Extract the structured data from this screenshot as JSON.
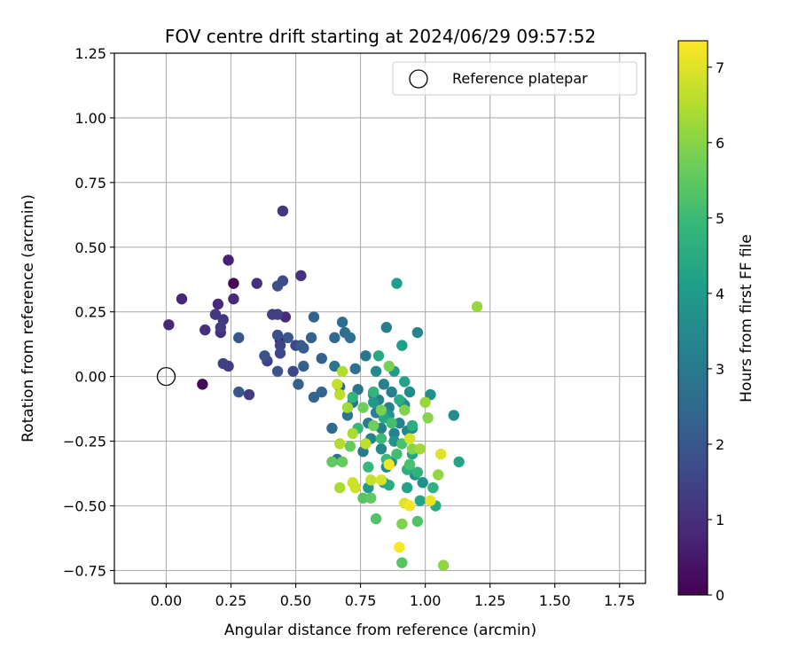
{
  "chart_data": {
    "type": "scatter",
    "title": "FOV centre drift starting at 2024/06/29 09:57:52",
    "xlabel": "Angular distance from reference (arcmin)",
    "ylabel": "Rotation from reference (arcmin)",
    "xlim": [
      -0.2,
      1.85
    ],
    "ylim": [
      -0.8,
      1.25
    ],
    "xticks": [
      "0.00",
      "0.25",
      "0.50",
      "0.75",
      "1.00",
      "1.25",
      "1.50",
      "1.75"
    ],
    "xtick_values": [
      0,
      0.25,
      0.5,
      0.75,
      1.0,
      1.25,
      1.5,
      1.75
    ],
    "yticks": [
      "−0.75",
      "−0.50",
      "−0.25",
      "0.00",
      "0.25",
      "0.50",
      "0.75",
      "1.00",
      "1.25"
    ],
    "ytick_values": [
      -0.75,
      -0.5,
      -0.25,
      0,
      0.25,
      0.5,
      0.75,
      1.0,
      1.25
    ],
    "grid": true,
    "legend": {
      "position": "top-right",
      "entries": [
        "Reference platepar"
      ]
    },
    "reference_point": {
      "x": 0,
      "y": 0,
      "label": "Reference platepar"
    },
    "colorbar": {
      "label": "Hours from first FF file",
      "min": 0,
      "max": 7.35,
      "ticks": [
        "0",
        "1",
        "2",
        "3",
        "4",
        "5",
        "6",
        "7"
      ],
      "tick_values": [
        0,
        1,
        2,
        3,
        4,
        5,
        6,
        7
      ],
      "colormap": "viridis",
      "colormap_stops": [
        "#440154",
        "#482878",
        "#3e4989",
        "#31688e",
        "#26828e",
        "#1f9e89",
        "#35b779",
        "#6ece58",
        "#b5de2b",
        "#fde725"
      ]
    },
    "points": [
      {
        "x": 0.26,
        "y": 0.36,
        "c": 0.1
      },
      {
        "x": 0.14,
        "y": -0.03,
        "c": 0.15
      },
      {
        "x": 0.44,
        "y": 0.14,
        "c": 0.3
      },
      {
        "x": 0.24,
        "y": 0.45,
        "c": 0.7
      },
      {
        "x": 0.06,
        "y": 0.3,
        "c": 0.8
      },
      {
        "x": 0.01,
        "y": 0.2,
        "c": 0.8
      },
      {
        "x": 0.2,
        "y": 0.28,
        "c": 0.9
      },
      {
        "x": 0.26,
        "y": 0.3,
        "c": 0.9
      },
      {
        "x": 0.46,
        "y": 0.23,
        "c": 0.9
      },
      {
        "x": 0.52,
        "y": 0.39,
        "c": 1.0
      },
      {
        "x": 0.15,
        "y": 0.18,
        "c": 1.0
      },
      {
        "x": 0.21,
        "y": 0.17,
        "c": 1.0
      },
      {
        "x": 0.35,
        "y": 0.36,
        "c": 1.0
      },
      {
        "x": 0.45,
        "y": 0.64,
        "c": 1.2
      },
      {
        "x": 0.19,
        "y": 0.24,
        "c": 1.2
      },
      {
        "x": 0.22,
        "y": 0.22,
        "c": 1.2
      },
      {
        "x": 0.21,
        "y": 0.19,
        "c": 1.3
      },
      {
        "x": 0.32,
        "y": -0.07,
        "c": 1.3
      },
      {
        "x": 0.24,
        "y": 0.04,
        "c": 1.3
      },
      {
        "x": 0.22,
        "y": 0.05,
        "c": 1.4
      },
      {
        "x": 0.41,
        "y": 0.24,
        "c": 1.4
      },
      {
        "x": 0.43,
        "y": 0.24,
        "c": 1.4
      },
      {
        "x": 0.44,
        "y": 0.12,
        "c": 1.5
      },
      {
        "x": 0.39,
        "y": 0.06,
        "c": 1.5
      },
      {
        "x": 0.44,
        "y": 0.09,
        "c": 1.6
      },
      {
        "x": 0.49,
        "y": 0.02,
        "c": 1.6
      },
      {
        "x": 0.5,
        "y": 0.12,
        "c": 1.6
      },
      {
        "x": 0.45,
        "y": 0.37,
        "c": 1.7
      },
      {
        "x": 0.43,
        "y": 0.35,
        "c": 1.8
      },
      {
        "x": 0.43,
        "y": 0.16,
        "c": 1.8
      },
      {
        "x": 0.38,
        "y": 0.08,
        "c": 1.9
      },
      {
        "x": 0.43,
        "y": 0.02,
        "c": 1.9
      },
      {
        "x": 0.28,
        "y": 0.15,
        "c": 2.0
      },
      {
        "x": 0.28,
        "y": -0.06,
        "c": 2.0
      },
      {
        "x": 0.47,
        "y": 0.15,
        "c": 2.0
      },
      {
        "x": 0.52,
        "y": 0.12,
        "c": 2.1
      },
      {
        "x": 0.53,
        "y": 0.11,
        "c": 2.1
      },
      {
        "x": 0.51,
        "y": -0.03,
        "c": 2.2
      },
      {
        "x": 0.53,
        "y": 0.04,
        "c": 2.2
      },
      {
        "x": 0.57,
        "y": 0.23,
        "c": 2.3
      },
      {
        "x": 0.56,
        "y": 0.15,
        "c": 2.3
      },
      {
        "x": 0.6,
        "y": 0.07,
        "c": 2.3
      },
      {
        "x": 0.57,
        "y": -0.08,
        "c": 2.4
      },
      {
        "x": 0.6,
        "y": -0.06,
        "c": 2.4
      },
      {
        "x": 0.64,
        "y": -0.2,
        "c": 2.5
      },
      {
        "x": 0.65,
        "y": 0.15,
        "c": 2.5
      },
      {
        "x": 0.68,
        "y": 0.21,
        "c": 2.6
      },
      {
        "x": 0.69,
        "y": 0.17,
        "c": 2.6
      },
      {
        "x": 0.67,
        "y": -0.04,
        "c": 2.6
      },
      {
        "x": 0.66,
        "y": -0.32,
        "c": 2.7
      },
      {
        "x": 0.71,
        "y": 0.15,
        "c": 2.7
      },
      {
        "x": 0.73,
        "y": 0.03,
        "c": 2.7
      },
      {
        "x": 0.65,
        "y": 0.04,
        "c": 2.8
      },
      {
        "x": 0.7,
        "y": -0.15,
        "c": 2.8
      },
      {
        "x": 0.72,
        "y": -0.1,
        "c": 2.9
      },
      {
        "x": 0.74,
        "y": -0.05,
        "c": 2.9
      },
      {
        "x": 0.77,
        "y": 0.08,
        "c": 2.9
      },
      {
        "x": 0.78,
        "y": -0.18,
        "c": 3.0
      },
      {
        "x": 0.8,
        "y": -0.07,
        "c": 3.0
      },
      {
        "x": 0.76,
        "y": -0.29,
        "c": 3.0
      },
      {
        "x": 0.81,
        "y": -0.14,
        "c": 3.1
      },
      {
        "x": 0.83,
        "y": -0.2,
        "c": 3.1
      },
      {
        "x": 0.85,
        "y": 0.19,
        "c": 3.1
      },
      {
        "x": 0.84,
        "y": -0.03,
        "c": 3.2
      },
      {
        "x": 0.82,
        "y": -0.09,
        "c": 3.2
      },
      {
        "x": 0.86,
        "y": -0.12,
        "c": 3.2
      },
      {
        "x": 0.87,
        "y": -0.06,
        "c": 3.2
      },
      {
        "x": 0.88,
        "y": -0.22,
        "c": 3.3
      },
      {
        "x": 0.79,
        "y": -0.24,
        "c": 3.3
      },
      {
        "x": 0.9,
        "y": -0.18,
        "c": 3.3
      },
      {
        "x": 0.92,
        "y": -0.11,
        "c": 3.3
      },
      {
        "x": 0.93,
        "y": -0.21,
        "c": 3.4
      },
      {
        "x": 0.95,
        "y": -0.2,
        "c": 3.4
      },
      {
        "x": 0.97,
        "y": 0.17,
        "c": 3.4
      },
      {
        "x": 0.83,
        "y": -0.28,
        "c": 3.4
      },
      {
        "x": 0.85,
        "y": -0.35,
        "c": 3.5
      },
      {
        "x": 0.87,
        "y": -0.33,
        "c": 3.5
      },
      {
        "x": 0.81,
        "y": 0.02,
        "c": 3.5
      },
      {
        "x": 0.91,
        "y": -0.1,
        "c": 3.6
      },
      {
        "x": 0.94,
        "y": -0.06,
        "c": 3.6
      },
      {
        "x": 1.02,
        "y": -0.07,
        "c": 3.7
      },
      {
        "x": 1.11,
        "y": -0.15,
        "c": 3.6
      },
      {
        "x": 0.99,
        "y": -0.41,
        "c": 3.7
      },
      {
        "x": 0.96,
        "y": -0.38,
        "c": 3.7
      },
      {
        "x": 0.88,
        "y": -0.25,
        "c": 3.8
      },
      {
        "x": 0.86,
        "y": -0.15,
        "c": 3.8
      },
      {
        "x": 0.8,
        "y": -0.1,
        "c": 3.9
      },
      {
        "x": 0.78,
        "y": -0.43,
        "c": 3.9
      },
      {
        "x": 0.84,
        "y": -0.41,
        "c": 4.0
      },
      {
        "x": 0.88,
        "y": 0.02,
        "c": 4.0
      },
      {
        "x": 0.89,
        "y": 0.36,
        "c": 4.1
      },
      {
        "x": 0.91,
        "y": 0.12,
        "c": 4.1
      },
      {
        "x": 0.92,
        "y": -0.02,
        "c": 4.2
      },
      {
        "x": 0.93,
        "y": -0.43,
        "c": 4.2
      },
      {
        "x": 0.95,
        "y": -0.3,
        "c": 4.3
      },
      {
        "x": 0.98,
        "y": -0.48,
        "c": 4.3
      },
      {
        "x": 1.04,
        "y": -0.5,
        "c": 4.4
      },
      {
        "x": 1.13,
        "y": -0.33,
        "c": 4.3
      },
      {
        "x": 0.82,
        "y": 0.08,
        "c": 4.4
      },
      {
        "x": 0.84,
        "y": -0.16,
        "c": 4.4
      },
      {
        "x": 0.86,
        "y": -0.42,
        "c": 4.5
      },
      {
        "x": 0.9,
        "y": -0.09,
        "c": 4.5
      },
      {
        "x": 0.93,
        "y": -0.36,
        "c": 4.6
      },
      {
        "x": 0.95,
        "y": -0.19,
        "c": 4.6
      },
      {
        "x": 0.97,
        "y": -0.37,
        "c": 4.7
      },
      {
        "x": 1.03,
        "y": -0.43,
        "c": 4.7
      },
      {
        "x": 0.8,
        "y": -0.06,
        "c": 4.8
      },
      {
        "x": 0.72,
        "y": -0.08,
        "c": 4.8
      },
      {
        "x": 0.74,
        "y": -0.2,
        "c": 4.9
      },
      {
        "x": 0.78,
        "y": -0.35,
        "c": 4.9
      },
      {
        "x": 0.83,
        "y": -0.24,
        "c": 5.0
      },
      {
        "x": 0.85,
        "y": -0.32,
        "c": 5.0
      },
      {
        "x": 0.87,
        "y": -0.18,
        "c": 5.1
      },
      {
        "x": 0.89,
        "y": -0.3,
        "c": 5.1
      },
      {
        "x": 0.91,
        "y": -0.26,
        "c": 5.2
      },
      {
        "x": 0.94,
        "y": -0.34,
        "c": 5.2
      },
      {
        "x": 0.97,
        "y": -0.56,
        "c": 5.3
      },
      {
        "x": 0.81,
        "y": -0.55,
        "c": 5.3
      },
      {
        "x": 0.91,
        "y": -0.72,
        "c": 5.4
      },
      {
        "x": 0.76,
        "y": -0.47,
        "c": 5.4
      },
      {
        "x": 0.79,
        "y": -0.47,
        "c": 5.5
      },
      {
        "x": 0.64,
        "y": -0.33,
        "c": 5.5
      },
      {
        "x": 0.68,
        "y": -0.33,
        "c": 5.6
      },
      {
        "x": 0.71,
        "y": -0.27,
        "c": 5.6
      },
      {
        "x": 0.76,
        "y": -0.12,
        "c": 5.7
      },
      {
        "x": 0.8,
        "y": -0.19,
        "c": 5.7
      },
      {
        "x": 0.86,
        "y": 0.04,
        "c": 5.8
      },
      {
        "x": 0.83,
        "y": -0.13,
        "c": 5.8
      },
      {
        "x": 0.91,
        "y": -0.57,
        "c": 5.9
      },
      {
        "x": 0.92,
        "y": -0.13,
        "c": 5.9
      },
      {
        "x": 0.95,
        "y": -0.28,
        "c": 6.0
      },
      {
        "x": 1.01,
        "y": -0.16,
        "c": 6.0
      },
      {
        "x": 1.05,
        "y": -0.38,
        "c": 6.1
      },
      {
        "x": 1.07,
        "y": -0.73,
        "c": 6.1
      },
      {
        "x": 1.2,
        "y": 0.27,
        "c": 6.2
      },
      {
        "x": 1.0,
        "y": -0.1,
        "c": 6.2
      },
      {
        "x": 0.98,
        "y": -0.28,
        "c": 6.3
      },
      {
        "x": 0.7,
        "y": -0.12,
        "c": 6.3
      },
      {
        "x": 0.67,
        "y": -0.43,
        "c": 6.4
      },
      {
        "x": 0.72,
        "y": -0.22,
        "c": 6.4
      },
      {
        "x": 0.67,
        "y": -0.26,
        "c": 6.5
      },
      {
        "x": 0.68,
        "y": 0.02,
        "c": 6.5
      },
      {
        "x": 0.67,
        "y": -0.07,
        "c": 6.6
      },
      {
        "x": 0.77,
        "y": -0.26,
        "c": 6.6
      },
      {
        "x": 0.79,
        "y": -0.4,
        "c": 6.7
      },
      {
        "x": 0.66,
        "y": -0.03,
        "c": 6.7
      },
      {
        "x": 0.72,
        "y": -0.41,
        "c": 6.8
      },
      {
        "x": 0.73,
        "y": -0.43,
        "c": 6.8
      },
      {
        "x": 0.83,
        "y": -0.4,
        "c": 6.9
      },
      {
        "x": 0.94,
        "y": -0.24,
        "c": 6.9
      },
      {
        "x": 1.06,
        "y": -0.3,
        "c": 7.0
      },
      {
        "x": 0.92,
        "y": -0.49,
        "c": 7.0
      },
      {
        "x": 1.02,
        "y": -0.48,
        "c": 7.1
      },
      {
        "x": 0.86,
        "y": -0.34,
        "c": 7.2
      },
      {
        "x": 0.94,
        "y": -0.5,
        "c": 7.2
      },
      {
        "x": 0.9,
        "y": -0.66,
        "c": 7.3
      }
    ]
  }
}
